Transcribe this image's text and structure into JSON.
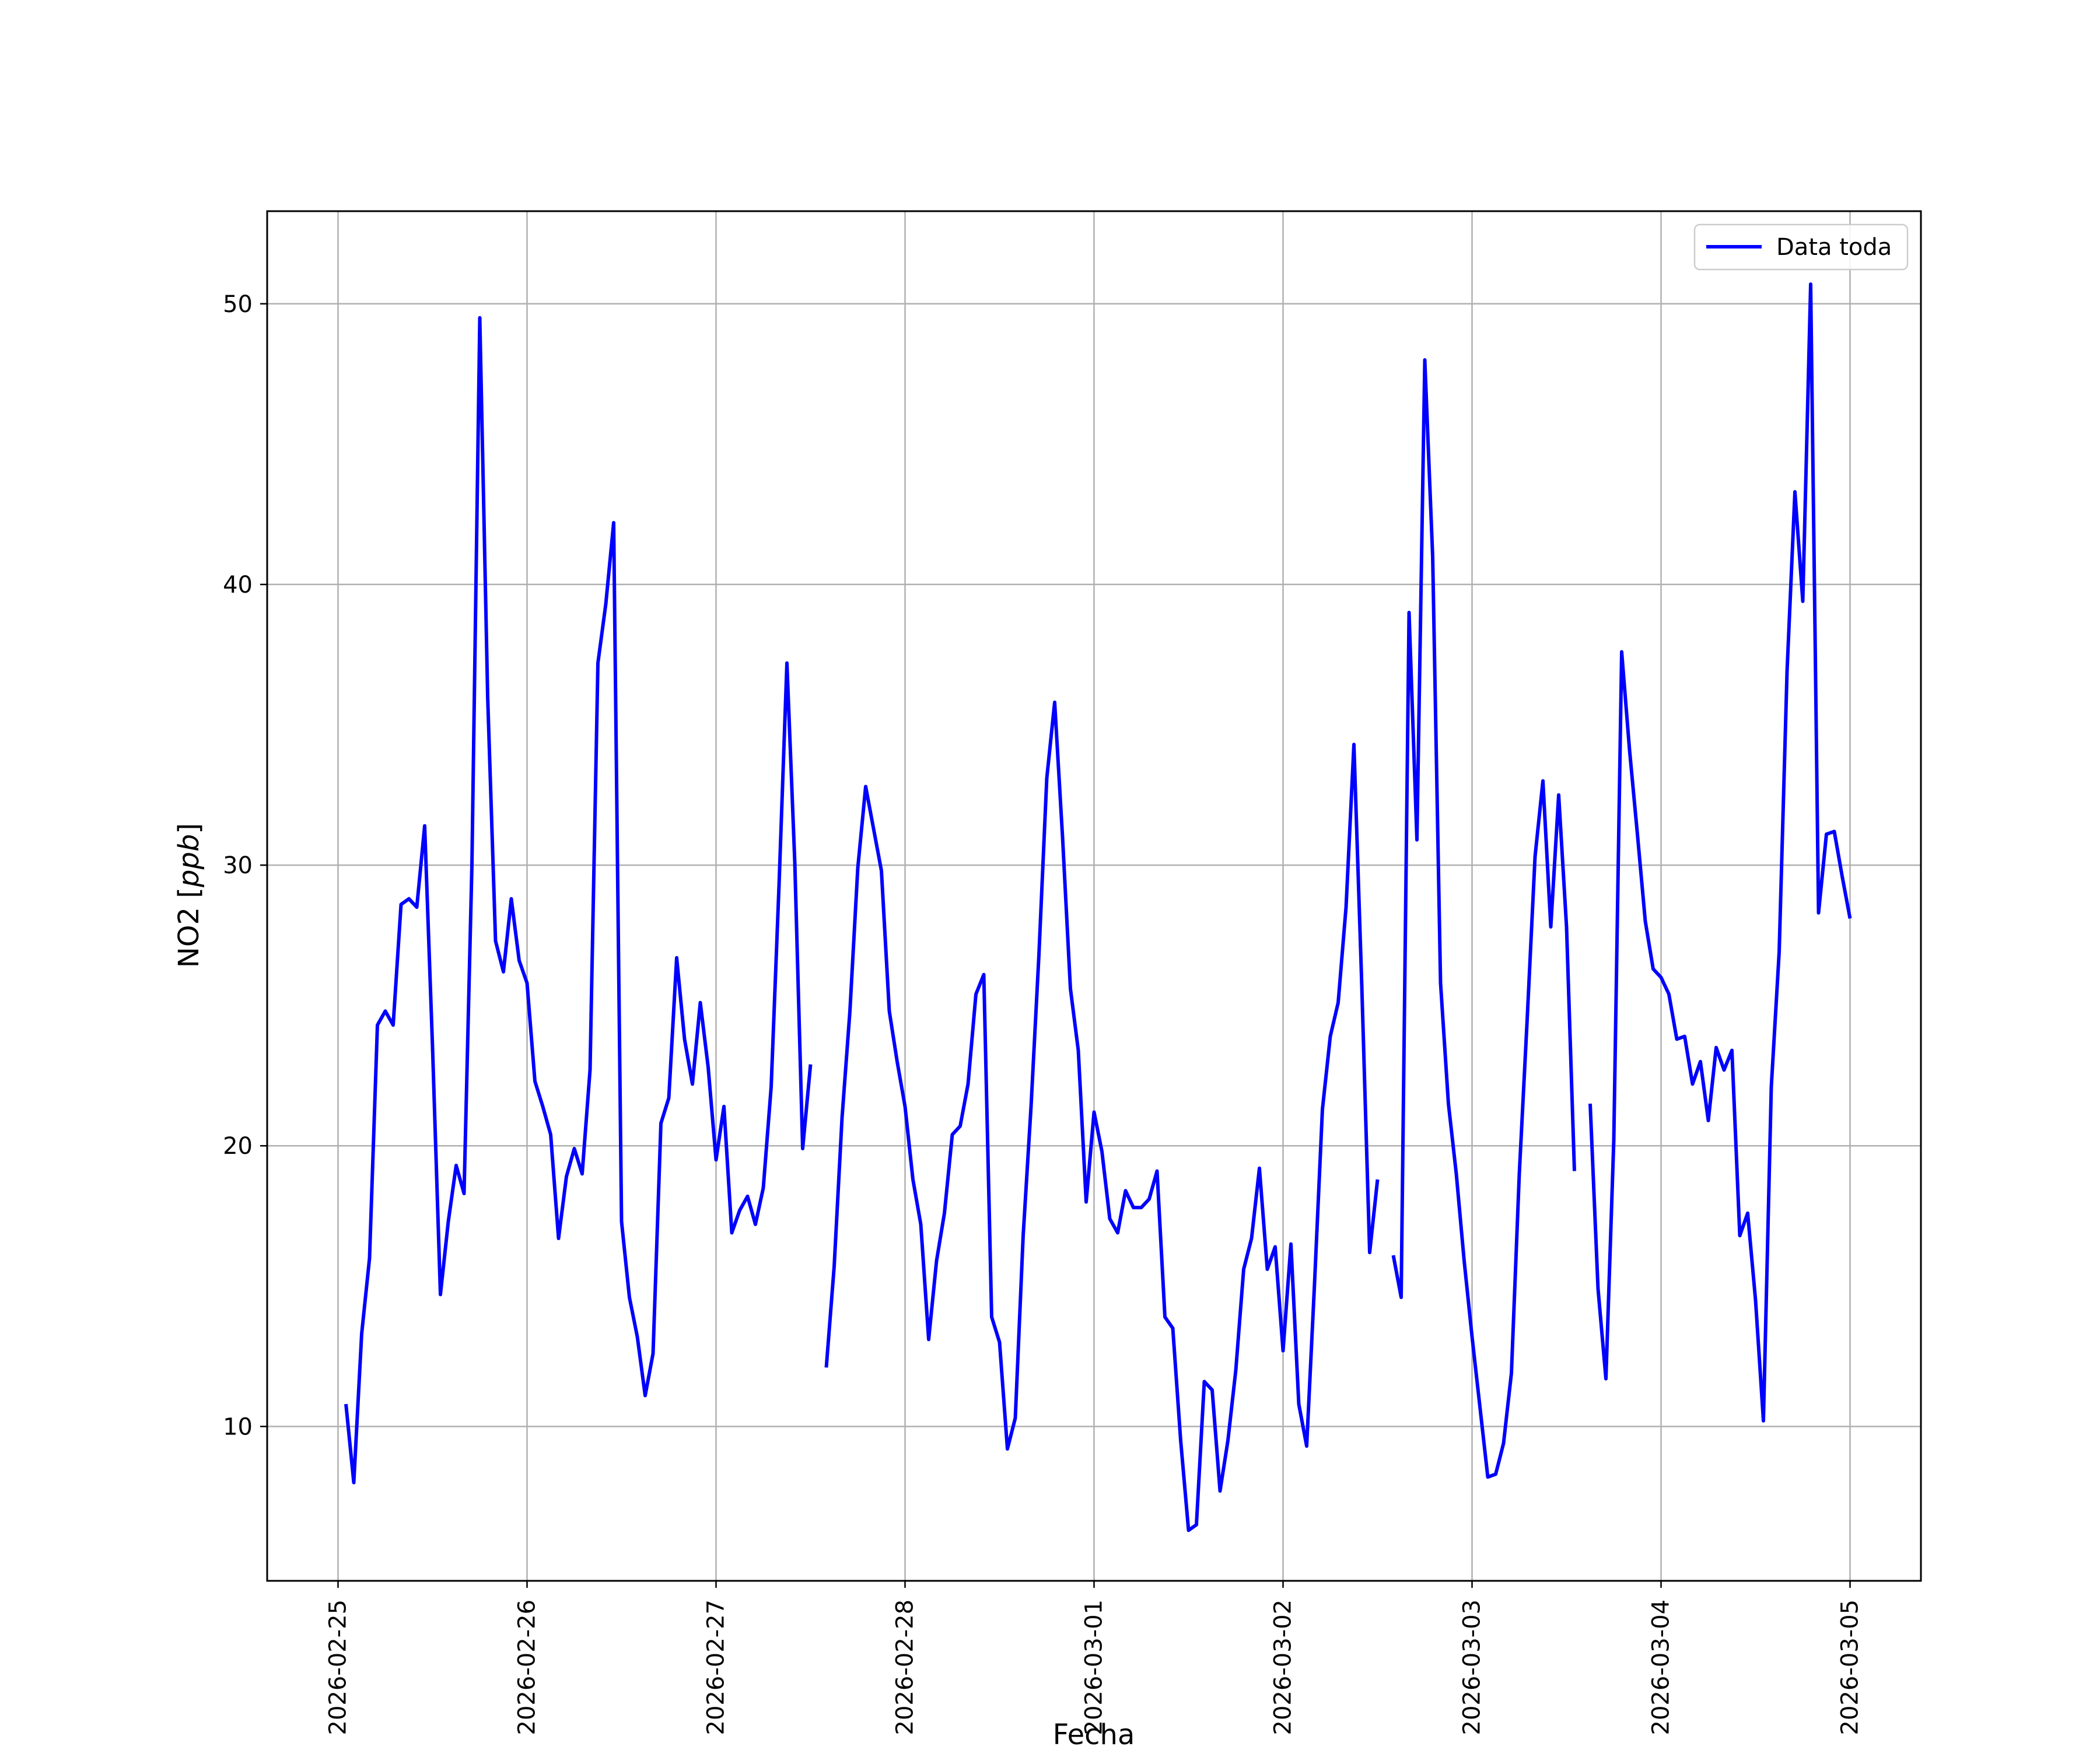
{
  "chart_data": {
    "type": "line",
    "xlabel": "Fecha",
    "ylabel_text": "NO2 [",
    "ylabel_unit": "ppb",
    "ylabel_close": "]",
    "xlim": [
      "2026-02-24T15:00",
      "2026-03-05T09:00"
    ],
    "ylim": [
      4.5,
      53.3
    ],
    "grid": true,
    "legend_position": "top-right",
    "x_ticks": [
      "2026-02-25",
      "2026-02-26",
      "2026-02-27",
      "2026-02-28",
      "2026-03-01",
      "2026-03-02",
      "2026-03-03",
      "2026-03-04",
      "2026-03-05"
    ],
    "y_ticks": [
      10,
      20,
      30,
      40,
      50
    ],
    "series": [
      {
        "name": "Data toda",
        "color": "#0000ff",
        "points": [
          [
            "2026-02-25T01:00",
            10.8
          ],
          [
            "2026-02-25T02:00",
            8.0
          ],
          [
            "2026-02-25T03:00",
            13.3
          ],
          [
            "2026-02-25T04:00",
            16.0
          ],
          [
            "2026-02-25T05:00",
            24.3
          ],
          [
            "2026-02-25T06:00",
            24.8
          ],
          [
            "2026-02-25T07:00",
            24.3
          ],
          [
            "2026-02-25T08:00",
            28.6
          ],
          [
            "2026-02-25T09:00",
            28.8
          ],
          [
            "2026-02-25T10:00",
            28.5
          ],
          [
            "2026-02-25T11:00",
            31.4
          ],
          [
            "2026-02-25T12:00",
            23.5
          ],
          [
            "2026-02-25T13:00",
            14.7
          ],
          [
            "2026-02-25T14:00",
            17.3
          ],
          [
            "2026-02-25T15:00",
            19.3
          ],
          [
            "2026-02-25T16:00",
            18.3
          ],
          [
            "2026-02-25T17:00",
            30.0
          ],
          [
            "2026-02-25T18:00",
            49.5
          ],
          [
            "2026-02-25T19:00",
            36.0
          ],
          [
            "2026-02-25T20:00",
            27.3
          ],
          [
            "2026-02-25T21:00",
            26.2
          ],
          [
            "2026-02-25T22:00",
            28.8
          ],
          [
            "2026-02-25T23:00",
            26.6
          ],
          [
            "2026-02-26T00:00",
            25.8
          ],
          [
            "2026-02-26T01:00",
            22.3
          ],
          [
            "2026-02-26T02:00",
            21.4
          ],
          [
            "2026-02-26T03:00",
            20.4
          ],
          [
            "2026-02-26T04:00",
            16.7
          ],
          [
            "2026-02-26T05:00",
            18.9
          ],
          [
            "2026-02-26T06:00",
            19.9
          ],
          [
            "2026-02-26T07:00",
            19.0
          ],
          [
            "2026-02-26T08:00",
            22.7
          ],
          [
            "2026-02-26T09:00",
            37.2
          ],
          [
            "2026-02-26T10:00",
            39.3
          ],
          [
            "2026-02-26T11:00",
            42.2
          ],
          [
            "2026-02-26T12:00",
            17.3
          ],
          [
            "2026-02-26T13:00",
            14.6
          ],
          [
            "2026-02-26T14:00",
            13.2
          ],
          [
            "2026-02-26T15:00",
            11.1
          ],
          [
            "2026-02-26T16:00",
            12.6
          ],
          [
            "2026-02-26T17:00",
            20.8
          ],
          [
            "2026-02-26T18:00",
            21.7
          ],
          [
            "2026-02-26T19:00",
            26.7
          ],
          [
            "2026-02-26T20:00",
            23.8
          ],
          [
            "2026-02-26T21:00",
            22.2
          ],
          [
            "2026-02-26T22:00",
            25.1
          ],
          [
            "2026-02-26T23:00",
            22.8
          ],
          [
            "2026-02-27T00:00",
            19.5
          ],
          [
            "2026-02-27T01:00",
            21.4
          ],
          [
            "2026-02-27T02:00",
            16.9
          ],
          [
            "2026-02-27T03:00",
            17.7
          ],
          [
            "2026-02-27T04:00",
            18.2
          ],
          [
            "2026-02-27T05:00",
            17.2
          ],
          [
            "2026-02-27T06:00",
            18.5
          ],
          [
            "2026-02-27T07:00",
            22.1
          ],
          [
            "2026-02-27T08:00",
            29.3
          ],
          [
            "2026-02-27T09:00",
            37.2
          ],
          [
            "2026-02-27T10:00",
            30.1
          ],
          [
            "2026-02-27T11:00",
            19.9
          ],
          [
            "2026-02-27T12:00",
            22.9
          ],
          null,
          [
            "2026-02-27T14:00",
            12.1
          ],
          [
            "2026-02-27T15:00",
            15.7
          ],
          [
            "2026-02-27T16:00",
            21.0
          ],
          [
            "2026-02-27T17:00",
            24.8
          ],
          [
            "2026-02-27T18:00",
            29.9
          ],
          [
            "2026-02-27T19:00",
            32.8
          ],
          [
            "2026-02-27T20:00",
            31.3
          ],
          [
            "2026-02-27T21:00",
            29.8
          ],
          [
            "2026-02-27T22:00",
            24.8
          ],
          [
            "2026-02-27T23:00",
            23.0
          ],
          [
            "2026-02-28T00:00",
            21.4
          ],
          [
            "2026-02-28T01:00",
            18.8
          ],
          [
            "2026-02-28T02:00",
            17.2
          ],
          [
            "2026-02-28T03:00",
            13.1
          ],
          [
            "2026-02-28T04:00",
            15.9
          ],
          [
            "2026-02-28T05:00",
            17.6
          ],
          [
            "2026-02-28T06:00",
            20.4
          ],
          [
            "2026-02-28T07:00",
            20.7
          ],
          [
            "2026-02-28T08:00",
            22.2
          ],
          [
            "2026-02-28T09:00",
            25.4
          ],
          [
            "2026-02-28T10:00",
            26.1
          ],
          [
            "2026-02-28T11:00",
            13.9
          ],
          [
            "2026-02-28T12:00",
            13.0
          ],
          [
            "2026-02-28T13:00",
            9.2
          ],
          [
            "2026-02-28T14:00",
            10.3
          ],
          [
            "2026-02-28T15:00",
            16.8
          ],
          [
            "2026-02-28T16:00",
            21.4
          ],
          [
            "2026-02-28T17:00",
            26.8
          ],
          [
            "2026-02-28T18:00",
            33.1
          ],
          [
            "2026-02-28T19:00",
            35.8
          ],
          [
            "2026-02-28T20:00",
            31.0
          ],
          [
            "2026-02-28T21:00",
            25.6
          ],
          [
            "2026-02-28T22:00",
            23.4
          ],
          [
            "2026-02-28T23:00",
            18.0
          ],
          [
            "2026-03-01T00:00",
            21.2
          ],
          [
            "2026-03-01T01:00",
            19.8
          ],
          [
            "2026-03-01T02:00",
            17.4
          ],
          [
            "2026-03-01T03:00",
            16.9
          ],
          [
            "2026-03-01T04:00",
            18.4
          ],
          [
            "2026-03-01T05:00",
            17.8
          ],
          [
            "2026-03-01T06:00",
            17.8
          ],
          [
            "2026-03-01T07:00",
            18.1
          ],
          [
            "2026-03-01T08:00",
            19.1
          ],
          [
            "2026-03-01T09:00",
            13.9
          ],
          [
            "2026-03-01T10:00",
            13.5
          ],
          [
            "2026-03-01T11:00",
            9.5
          ],
          [
            "2026-03-01T12:00",
            6.3
          ],
          [
            "2026-03-01T13:00",
            6.5
          ],
          [
            "2026-03-01T14:00",
            11.6
          ],
          [
            "2026-03-01T15:00",
            11.3
          ],
          [
            "2026-03-01T16:00",
            7.7
          ],
          [
            "2026-03-01T17:00",
            9.5
          ],
          [
            "2026-03-01T18:00",
            12.0
          ],
          [
            "2026-03-01T19:00",
            15.6
          ],
          [
            "2026-03-01T20:00",
            16.7
          ],
          [
            "2026-03-01T21:00",
            19.2
          ],
          [
            "2026-03-01T22:00",
            15.6
          ],
          [
            "2026-03-01T23:00",
            16.4
          ],
          [
            "2026-03-02T00:00",
            12.7
          ],
          [
            "2026-03-02T01:00",
            16.5
          ],
          [
            "2026-03-02T02:00",
            10.8
          ],
          [
            "2026-03-02T03:00",
            9.3
          ],
          [
            "2026-03-02T04:00",
            15.1
          ],
          [
            "2026-03-02T05:00",
            21.3
          ],
          [
            "2026-03-02T06:00",
            23.9
          ],
          [
            "2026-03-02T07:00",
            25.1
          ],
          [
            "2026-03-02T08:00",
            28.5
          ],
          [
            "2026-03-02T09:00",
            34.3
          ],
          [
            "2026-03-02T10:00",
            25.7
          ],
          [
            "2026-03-02T11:00",
            16.2
          ],
          [
            "2026-03-02T12:00",
            18.8
          ],
          null,
          [
            "2026-03-02T14:00",
            16.1
          ],
          [
            "2026-03-02T15:00",
            14.6
          ],
          [
            "2026-03-02T16:00",
            39.0
          ],
          [
            "2026-03-02T17:00",
            30.9
          ],
          [
            "2026-03-02T18:00",
            48.0
          ],
          [
            "2026-03-02T19:00",
            41.0
          ],
          [
            "2026-03-02T20:00",
            25.8
          ],
          [
            "2026-03-02T21:00",
            21.5
          ],
          [
            "2026-03-02T22:00",
            19.0
          ],
          [
            "2026-03-02T23:00",
            15.9
          ],
          [
            "2026-03-03T00:00",
            13.2
          ],
          [
            "2026-03-03T01:00",
            10.7
          ],
          [
            "2026-03-03T02:00",
            8.2
          ],
          [
            "2026-03-03T03:00",
            8.3
          ],
          [
            "2026-03-03T04:00",
            9.4
          ],
          [
            "2026-03-03T05:00",
            11.9
          ],
          [
            "2026-03-03T06:00",
            19.0
          ],
          [
            "2026-03-03T07:00",
            24.5
          ],
          [
            "2026-03-03T08:00",
            30.3
          ],
          [
            "2026-03-03T09:00",
            33.0
          ],
          [
            "2026-03-03T10:00",
            27.8
          ],
          [
            "2026-03-03T11:00",
            32.5
          ],
          [
            "2026-03-03T12:00",
            27.8
          ],
          [
            "2026-03-03T13:00",
            19.1
          ],
          null,
          [
            "2026-03-03T15:00",
            21.5
          ],
          [
            "2026-03-03T16:00",
            14.9
          ],
          [
            "2026-03-03T17:00",
            11.7
          ],
          [
            "2026-03-03T18:00",
            20.2
          ],
          [
            "2026-03-03T19:00",
            37.6
          ],
          [
            "2026-03-03T20:00",
            34.1
          ],
          [
            "2026-03-03T21:00",
            31.1
          ],
          [
            "2026-03-03T22:00",
            28.0
          ],
          [
            "2026-03-03T23:00",
            26.3
          ],
          [
            "2026-03-04T00:00",
            26.0
          ],
          [
            "2026-03-04T01:00",
            25.4
          ],
          [
            "2026-03-04T02:00",
            23.8
          ],
          [
            "2026-03-04T03:00",
            23.9
          ],
          [
            "2026-03-04T04:00",
            22.2
          ],
          [
            "2026-03-04T05:00",
            23.0
          ],
          [
            "2026-03-04T06:00",
            20.9
          ],
          [
            "2026-03-04T07:00",
            23.5
          ],
          [
            "2026-03-04T08:00",
            22.7
          ],
          [
            "2026-03-04T09:00",
            23.4
          ],
          [
            "2026-03-04T10:00",
            16.8
          ],
          [
            "2026-03-04T11:00",
            17.6
          ],
          [
            "2026-03-04T12:00",
            14.5
          ],
          [
            "2026-03-04T13:00",
            10.2
          ],
          [
            "2026-03-04T14:00",
            22.1
          ],
          [
            "2026-03-04T15:00",
            26.9
          ],
          [
            "2026-03-04T16:00",
            36.9
          ],
          [
            "2026-03-04T17:00",
            43.3
          ],
          [
            "2026-03-04T18:00",
            39.4
          ],
          [
            "2026-03-04T19:00",
            50.7
          ],
          [
            "2026-03-04T20:00",
            28.3
          ],
          [
            "2026-03-04T21:00",
            31.1
          ],
          [
            "2026-03-04T22:00",
            31.2
          ],
          [
            "2026-03-04T23:00",
            29.6
          ],
          [
            "2026-03-05T00:00",
            28.1
          ]
        ]
      }
    ]
  }
}
